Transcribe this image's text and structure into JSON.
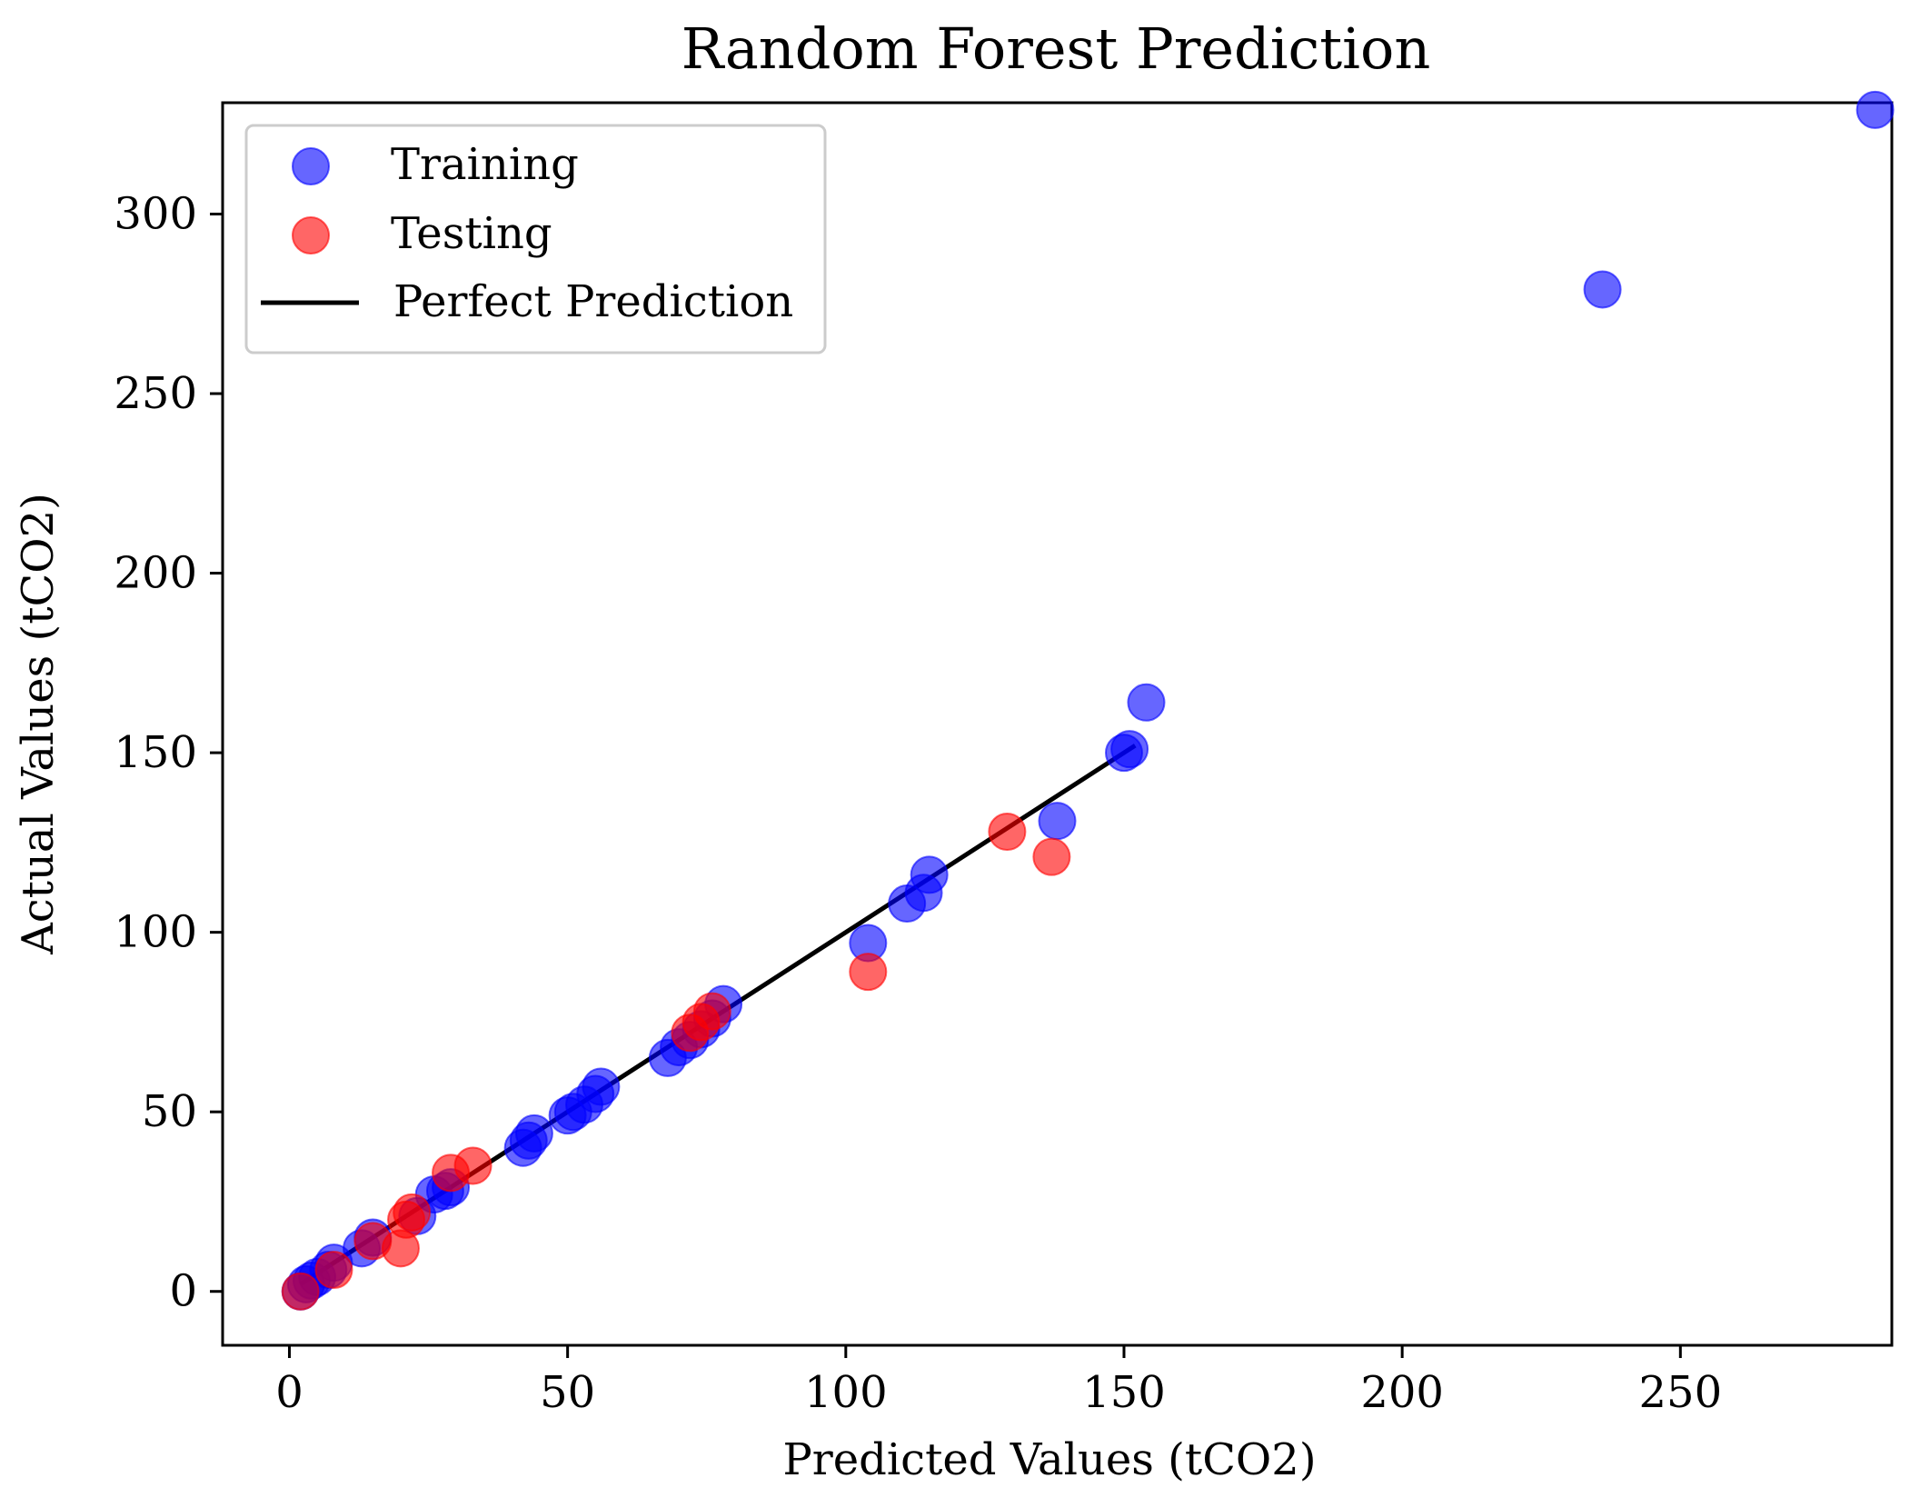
{
  "chart_data": {
    "type": "scatter",
    "title": "Random Forest Prediction",
    "xlabel": "Predicted Values (tCO2)",
    "ylabel": "Actual Values (tCO2)",
    "xlim": [
      -12,
      288
    ],
    "ylim": [
      -15,
      331
    ],
    "xticks": [
      0,
      50,
      100,
      150,
      200,
      250
    ],
    "yticks": [
      0,
      50,
      100,
      150,
      200,
      250,
      300
    ],
    "grid": false,
    "legend": {
      "position": "top-left",
      "entries": [
        "Training",
        "Testing",
        "Perfect Prediction"
      ]
    },
    "series": [
      {
        "name": "Training",
        "type": "scatter",
        "color": "#0000ff",
        "x": [
          2,
          3,
          4,
          5,
          7,
          8,
          13,
          15,
          23,
          26,
          28,
          29,
          42,
          43,
          44,
          50,
          51,
          53,
          55,
          56,
          68,
          70,
          72,
          74,
          76,
          78,
          104,
          111,
          114,
          115,
          138,
          150,
          151,
          154,
          236,
          285
        ],
        "y": [
          0,
          2,
          3,
          4,
          6,
          8,
          12,
          15,
          21,
          27,
          28,
          29,
          40,
          42,
          44,
          49,
          50,
          52,
          55,
          57,
          65,
          68,
          70,
          73,
          76,
          80,
          97,
          108,
          111,
          116,
          131,
          150,
          151,
          164,
          279,
          329
        ]
      },
      {
        "name": "Testing",
        "type": "scatter",
        "color": "#ff0000",
        "x": [
          2,
          8,
          15,
          20,
          21,
          22,
          29,
          33,
          72,
          74,
          76,
          104,
          129,
          137
        ],
        "y": [
          0,
          6,
          14,
          12,
          20,
          22,
          33,
          35,
          72,
          75,
          78,
          89,
          128,
          121
        ]
      },
      {
        "name": "Perfect Prediction",
        "type": "line",
        "color": "#000000",
        "x": [
          2,
          152
        ],
        "y": [
          2,
          152
        ]
      }
    ]
  }
}
